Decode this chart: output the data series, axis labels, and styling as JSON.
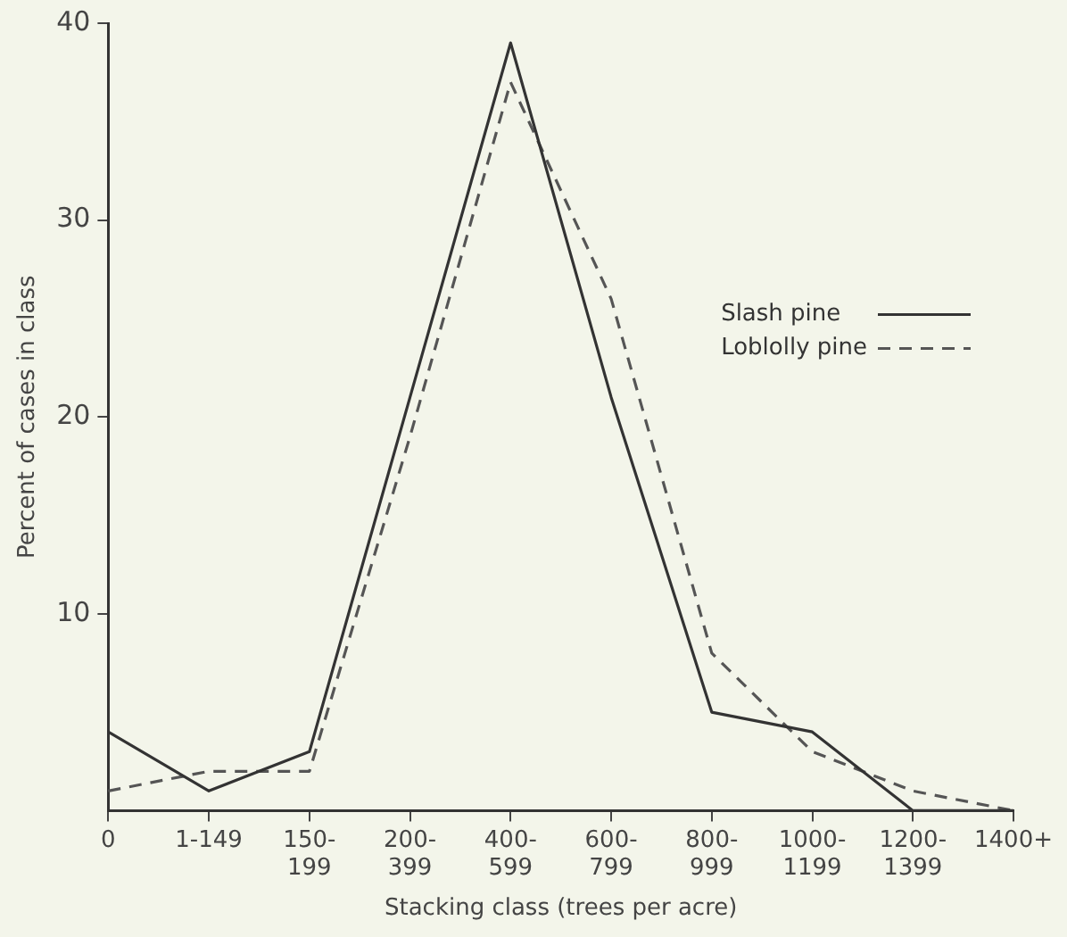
{
  "chart_data": {
    "type": "line",
    "xlabel": "Stacking class (trees per acre)",
    "ylabel": "Percent of cases in class",
    "categories": [
      "0",
      "1-149",
      "150-199",
      "200-399",
      "400-599",
      "600-799",
      "800-999",
      "1000-1199",
      "1200-1399",
      "1400+"
    ],
    "series": [
      {
        "name": "Slash pine",
        "color": "#333333",
        "line_style": "solid",
        "values": [
          4,
          1,
          3,
          21,
          39,
          21,
          5,
          4,
          0,
          0
        ]
      },
      {
        "name": "Loblolly pine",
        "color": "#555555",
        "line_style": "dashed",
        "values": [
          1,
          2,
          2,
          19,
          37,
          26,
          8,
          3,
          1,
          0
        ]
      }
    ],
    "ylim": [
      0,
      40
    ],
    "yticks": [
      10,
      20,
      30,
      40
    ],
    "grid": false,
    "legend": "right",
    "marker": "none"
  }
}
